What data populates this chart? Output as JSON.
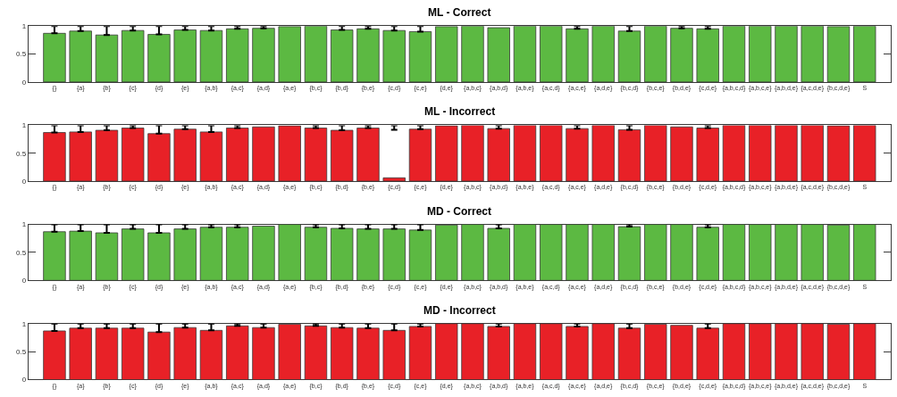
{
  "chart_data": [
    {
      "type": "bar",
      "title": "ML - Correct",
      "color": "#5cb942",
      "ylim": [
        0,
        1
      ],
      "yticks": [
        0,
        0.5,
        1
      ],
      "categories": [
        "{}",
        "{a}",
        "{b}",
        "{c}",
        "{d}",
        "{e}",
        "{a,b}",
        "{a,c}",
        "{a,d}",
        "{a,e}",
        "{b,c}",
        "{b,d}",
        "{b,e}",
        "{c,d}",
        "{c,e}",
        "{d,e}",
        "{a,b,c}",
        "{a,b,d}",
        "{a,b,e}",
        "{a,c,d}",
        "{a,c,e}",
        "{a,d,e}",
        "{b,c,d}",
        "{b,c,e}",
        "{b,d,e}",
        "{c,d,e}",
        "{a,b,c,d}",
        "{a,b,c,e}",
        "{a,b,d,e}",
        "{a,c,d,e}",
        "{b,c,d,e}",
        "S"
      ],
      "values": [
        0.87,
        0.91,
        0.84,
        0.92,
        0.85,
        0.93,
        0.92,
        0.95,
        0.96,
        0.99,
        1,
        0.93,
        0.95,
        0.92,
        0.9,
        0.99,
        1,
        0.97,
        1,
        1,
        0.95,
        1,
        0.91,
        1,
        0.96,
        0.95,
        1,
        1,
        1,
        1,
        0.99,
        1
      ],
      "errors": [
        [
          0.87,
          1
        ],
        [
          0.91,
          1
        ],
        [
          0.84,
          1
        ],
        [
          0.92,
          1
        ],
        [
          0.85,
          1
        ],
        [
          0.93,
          1
        ],
        [
          0.92,
          1
        ],
        [
          0.95,
          1
        ],
        [
          0.96,
          1
        ],
        null,
        null,
        [
          0.93,
          1
        ],
        [
          0.95,
          1
        ],
        [
          0.92,
          1
        ],
        [
          0.9,
          1
        ],
        null,
        null,
        null,
        null,
        null,
        [
          0.95,
          1
        ],
        null,
        [
          0.91,
          1
        ],
        null,
        [
          0.96,
          1
        ],
        [
          0.95,
          1
        ],
        null,
        null,
        null,
        null,
        null,
        null
      ]
    },
    {
      "type": "bar",
      "title": "ML - Incorrect",
      "color": "#e82127",
      "ylim": [
        0,
        1
      ],
      "yticks": [
        0,
        0.5,
        1
      ],
      "categories": [
        "{}",
        "{a}",
        "{b}",
        "{c}",
        "{d}",
        "{e}",
        "{a,b}",
        "{a,c}",
        "{a,d}",
        "{a,e}",
        "{b,c}",
        "{b,d}",
        "{b,e}",
        "{c,d}",
        "{c,e}",
        "{d,e}",
        "{a,b,c}",
        "{a,b,d}",
        "{a,b,e}",
        "{a,c,d}",
        "{a,c,e}",
        "{a,d,e}",
        "{b,c,d}",
        "{b,c,e}",
        "{b,d,e}",
        "{c,d,e}",
        "{a,b,c,d}",
        "{a,b,c,e}",
        "{a,b,d,e}",
        "{a,c,d,e}",
        "{b,c,d,e}",
        "S"
      ],
      "values": [
        0.87,
        0.88,
        0.91,
        0.95,
        0.85,
        0.93,
        0.88,
        0.95,
        0.97,
        0.99,
        0.95,
        0.91,
        0.95,
        0.06,
        0.93,
        0.99,
        1,
        0.94,
        1,
        1,
        0.94,
        1,
        0.92,
        1,
        0.97,
        0.95,
        1,
        1,
        1,
        1,
        0.99,
        1
      ],
      "errors": [
        [
          0.87,
          1
        ],
        [
          0.88,
          1
        ],
        [
          0.91,
          1
        ],
        [
          0.95,
          1
        ],
        [
          0.85,
          1
        ],
        [
          0.93,
          1
        ],
        [
          0.88,
          1
        ],
        [
          0.95,
          1
        ],
        null,
        null,
        [
          0.95,
          1
        ],
        [
          0.91,
          1
        ],
        [
          0.95,
          1
        ],
        [
          0.92,
          1
        ],
        [
          0.93,
          1
        ],
        null,
        null,
        [
          0.94,
          1
        ],
        null,
        null,
        [
          0.94,
          1
        ],
        null,
        [
          0.92,
          1
        ],
        null,
        null,
        [
          0.95,
          1
        ],
        null,
        null,
        null,
        null,
        null,
        null
      ]
    },
    {
      "type": "bar",
      "title": "MD - Correct",
      "color": "#5cb942",
      "ylim": [
        0,
        1
      ],
      "yticks": [
        0,
        0.5,
        1
      ],
      "categories": [
        "{}",
        "{a}",
        "{b}",
        "{c}",
        "{d}",
        "{e}",
        "{a,b}",
        "{a,c}",
        "{a,d}",
        "{a,e}",
        "{b,c}",
        "{b,d}",
        "{b,e}",
        "{c,d}",
        "{c,e}",
        "{d,e}",
        "{a,b,c}",
        "{a,b,d}",
        "{a,b,e}",
        "{a,c,d}",
        "{a,c,e}",
        "{a,d,e}",
        "{b,c,d}",
        "{b,c,e}",
        "{b,d,e}",
        "{c,d,e}",
        "{a,b,c,d}",
        "{a,b,c,e}",
        "{a,b,d,e}",
        "{a,c,d,e}",
        "{b,c,d,e}",
        "S"
      ],
      "values": [
        0.87,
        0.88,
        0.85,
        0.92,
        0.85,
        0.92,
        0.95,
        0.95,
        0.97,
        1,
        0.95,
        0.93,
        0.92,
        0.92,
        0.9,
        0.99,
        1,
        0.93,
        1,
        1,
        1,
        1,
        0.96,
        1,
        1,
        0.95,
        1,
        1,
        1,
        1,
        0.99,
        1
      ],
      "errors": [
        [
          0.87,
          1
        ],
        [
          0.88,
          1
        ],
        [
          0.85,
          1
        ],
        [
          0.92,
          1
        ],
        [
          0.85,
          1
        ],
        [
          0.92,
          1
        ],
        [
          0.95,
          1
        ],
        [
          0.95,
          1
        ],
        null,
        null,
        [
          0.95,
          1
        ],
        [
          0.93,
          1
        ],
        [
          0.92,
          1
        ],
        [
          0.92,
          1
        ],
        [
          0.9,
          1
        ],
        null,
        null,
        [
          0.93,
          1
        ],
        null,
        null,
        null,
        null,
        [
          0.96,
          1
        ],
        null,
        null,
        [
          0.95,
          1
        ],
        null,
        null,
        null,
        null,
        null,
        null
      ]
    },
    {
      "type": "bar",
      "title": "MD - Incorrect",
      "color": "#e82127",
      "ylim": [
        0,
        1
      ],
      "yticks": [
        0,
        0.5,
        1
      ],
      "categories": [
        "{}",
        "{a}",
        "{b}",
        "{c}",
        "{d}",
        "{e}",
        "{a,b}",
        "{a,c}",
        "{a,d}",
        "{a,e}",
        "{b,c}",
        "{b,d}",
        "{b,e}",
        "{c,d}",
        "{c,e}",
        "{d,e}",
        "{a,b,c}",
        "{a,b,d}",
        "{a,b,e}",
        "{a,c,d}",
        "{a,c,e}",
        "{a,d,e}",
        "{b,c,d}",
        "{b,c,e}",
        "{b,d,e}",
        "{c,d,e}",
        "{a,b,c,d}",
        "{a,b,c,e}",
        "{a,b,d,e}",
        "{a,c,d,e}",
        "{b,c,d,e}",
        "S"
      ],
      "values": [
        0.87,
        0.92,
        0.92,
        0.92,
        0.85,
        0.93,
        0.88,
        0.96,
        0.93,
        0.99,
        0.96,
        0.93,
        0.92,
        0.88,
        0.95,
        1,
        1,
        0.95,
        1,
        1,
        0.95,
        1,
        0.92,
        0.99,
        0.97,
        0.92,
        1,
        1,
        1,
        1,
        0.99,
        1
      ],
      "errors": [
        [
          0.87,
          1
        ],
        [
          0.92,
          1
        ],
        [
          0.92,
          1
        ],
        [
          0.92,
          1
        ],
        [
          0.85,
          1
        ],
        [
          0.93,
          1
        ],
        [
          0.88,
          1
        ],
        [
          0.96,
          1
        ],
        [
          0.93,
          1
        ],
        null,
        [
          0.96,
          1
        ],
        [
          0.93,
          1
        ],
        [
          0.92,
          1
        ],
        [
          0.88,
          1
        ],
        [
          0.95,
          1
        ],
        null,
        null,
        [
          0.95,
          1
        ],
        null,
        null,
        [
          0.95,
          1
        ],
        null,
        [
          0.92,
          1
        ],
        null,
        null,
        [
          0.92,
          1
        ],
        null,
        null,
        null,
        null,
        null,
        null
      ]
    }
  ]
}
